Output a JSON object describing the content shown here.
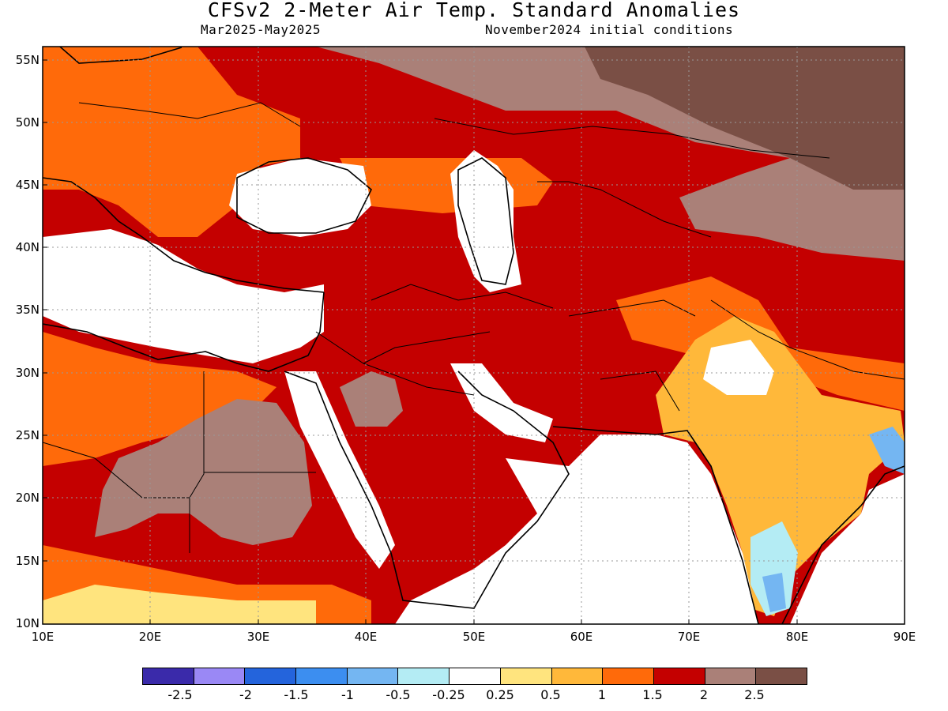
{
  "header": {
    "title": "CFSv2 2-Meter Air Temp. Standard Anomalies",
    "period": "Mar2025-May2025",
    "init": "November2024 initial conditions"
  },
  "axes": {
    "lat_labels": [
      "55N",
      "50N",
      "45N",
      "40N",
      "35N",
      "30N",
      "25N",
      "20N",
      "15N",
      "10N"
    ],
    "lon_labels": [
      "10E",
      "20E",
      "30E",
      "40E",
      "50E",
      "60E",
      "70E",
      "80E",
      "90E"
    ],
    "lat_range": [
      10,
      56
    ],
    "lon_range": [
      10,
      90
    ]
  },
  "colorbar": {
    "colors": [
      "#3a2aaa",
      "#9a88f5",
      "#2464dc",
      "#3c8ef0",
      "#74b6f2",
      "#b4ecf4",
      "#ffffff",
      "#ffe47e",
      "#ffb83a",
      "#ff6a0a",
      "#c40000",
      "#aa8078",
      "#7a4f45"
    ],
    "labels": [
      "-2.5",
      "-2",
      "-1.5",
      "-1",
      "-0.5",
      "-0.25",
      "0.25",
      "0.5",
      "1",
      "1.5",
      "2",
      "2.5"
    ]
  },
  "legend_colors": {
    "near_zero": "#ffffff",
    "warm_1": "#ffe47e",
    "warm_2": "#ffb83a",
    "warm_3": "#ff6a0a",
    "warm_4": "#c40000",
    "warm_5": "#aa8078",
    "warm_6": "#7a4f45",
    "cool_1": "#b4ecf4",
    "cool_2": "#74b6f2",
    "cool_3": "#3c8ef0"
  }
}
